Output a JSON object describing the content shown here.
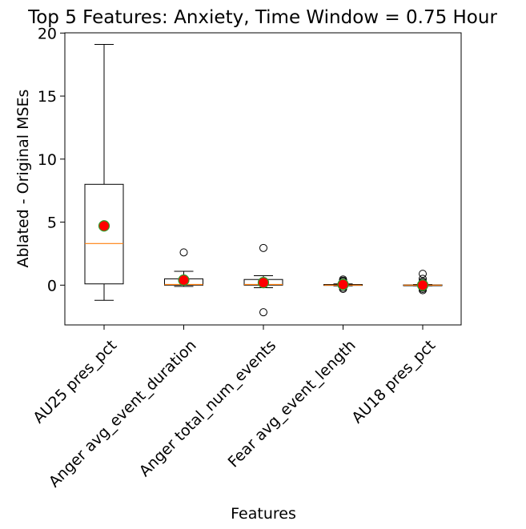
{
  "chart_data": {
    "type": "box",
    "title": "Top 5 Features: Anxiety, Time Window = 0.75 Hour",
    "xlabel": "Features",
    "ylabel": "Ablated - Original MSEs",
    "ylim": [
      -3.2,
      20.5
    ],
    "yticks": [
      0,
      5,
      10,
      15,
      20
    ],
    "grid": false,
    "legend": "none",
    "categories": [
      "AU25 pres_pct",
      "Anger avg_event_duration",
      "Anger total_num_events",
      "Fear avg_event_length",
      "AU18 pres_pct"
    ],
    "boxes": [
      {
        "whisker_low": -1.2,
        "q1": 0.1,
        "median": 3.3,
        "q3": 8.0,
        "whisker_high": 19.1,
        "mean": 4.7,
        "outliers": []
      },
      {
        "whisker_low": -0.1,
        "q1": 0.0,
        "median": 0.05,
        "q3": 0.5,
        "whisker_high": 1.1,
        "mean": 0.4,
        "outliers": [
          2.6
        ]
      },
      {
        "whisker_low": -0.2,
        "q1": 0.0,
        "median": 0.05,
        "q3": 0.45,
        "whisker_high": 0.75,
        "mean": 0.2,
        "outliers": [
          2.95,
          -2.15
        ]
      },
      {
        "whisker_low": -0.05,
        "q1": -0.02,
        "median": 0.0,
        "q3": 0.05,
        "whisker_high": 0.1,
        "mean": 0.05,
        "outliers": [
          0.45,
          0.35,
          0.3,
          0.2,
          -0.2,
          -0.3
        ]
      },
      {
        "whisker_low": -0.05,
        "q1": -0.02,
        "median": 0.0,
        "q3": 0.02,
        "whisker_high": 0.05,
        "mean": 0.0,
        "outliers": [
          0.9,
          0.5,
          0.3,
          0.2,
          -0.2,
          -0.3,
          -0.4
        ]
      }
    ],
    "colors": {
      "box": "#000000",
      "median": "#ff7f0e",
      "mean_fill": "#ff0000",
      "mean_edge": "#2ca02c",
      "outlier": "#000000"
    }
  }
}
